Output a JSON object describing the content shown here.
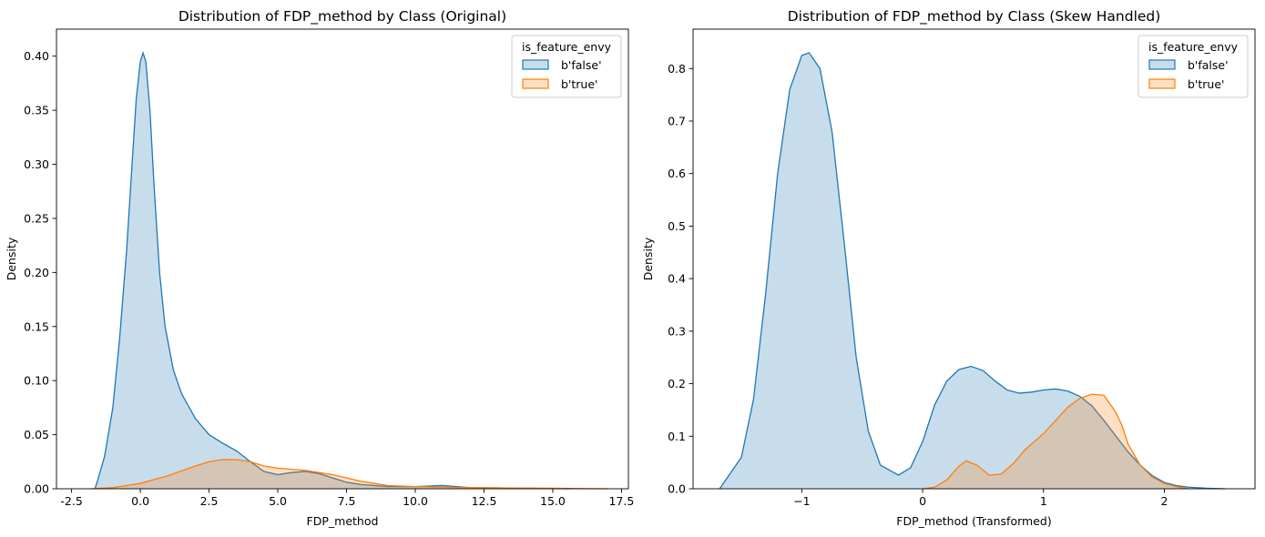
{
  "chart_data": [
    {
      "type": "area",
      "title": "Distribution of FDP_method by Class (Original)",
      "xlabel": "FDP_method",
      "ylabel": "Density",
      "xlim": [
        -3.05,
        17.75
      ],
      "ylim": [
        0,
        0.425
      ],
      "xticks": [
        "-2.5",
        "0.0",
        "2.5",
        "5.0",
        "7.5",
        "10.0",
        "12.5",
        "15.0",
        "17.5"
      ],
      "xtick_values": [
        -2.5,
        0,
        2.5,
        5,
        7.5,
        10,
        12.5,
        15,
        17.5
      ],
      "yticks": [
        "0.00",
        "0.05",
        "0.10",
        "0.15",
        "0.20",
        "0.25",
        "0.30",
        "0.35",
        "0.40"
      ],
      "ytick_values": [
        0,
        0.05,
        0.1,
        0.15,
        0.2,
        0.25,
        0.3,
        0.35,
        0.4
      ],
      "grid": false,
      "legend": {
        "title": "is_feature_envy",
        "position": "top-right"
      },
      "series": [
        {
          "name": "b'false'",
          "color": "#1f77b4",
          "points": [
            [
              -1.65,
              0
            ],
            [
              -1.55,
              0.008
            ],
            [
              -1.3,
              0.03
            ],
            [
              -1.0,
              0.075
            ],
            [
              -0.75,
              0.14
            ],
            [
              -0.5,
              0.22
            ],
            [
              -0.3,
              0.3
            ],
            [
              -0.15,
              0.36
            ],
            [
              0.0,
              0.395
            ],
            [
              0.1,
              0.403
            ],
            [
              0.2,
              0.395
            ],
            [
              0.35,
              0.35
            ],
            [
              0.5,
              0.28
            ],
            [
              0.7,
              0.2
            ],
            [
              0.9,
              0.15
            ],
            [
              1.2,
              0.11
            ],
            [
              1.5,
              0.088
            ],
            [
              2.0,
              0.065
            ],
            [
              2.5,
              0.05
            ],
            [
              3.0,
              0.042
            ],
            [
              3.5,
              0.035
            ],
            [
              4.0,
              0.025
            ],
            [
              4.5,
              0.016
            ],
            [
              5.0,
              0.013
            ],
            [
              5.5,
              0.015
            ],
            [
              6.0,
              0.016
            ],
            [
              6.5,
              0.014
            ],
            [
              7.0,
              0.01
            ],
            [
              7.5,
              0.006
            ],
            [
              8.0,
              0.004
            ],
            [
              9.0,
              0.002
            ],
            [
              10.0,
              0.002
            ],
            [
              11.0,
              0.003
            ],
            [
              12.0,
              0.001
            ],
            [
              13.0,
              0.0008
            ],
            [
              14.0,
              0.0005
            ],
            [
              15.0,
              0.0002
            ],
            [
              15.6,
              0
            ]
          ]
        },
        {
          "name": "b'true'",
          "color": "#ff7f0e",
          "points": [
            [
              -1.8,
              0
            ],
            [
              -1.0,
              0.001
            ],
            [
              0.0,
              0.005
            ],
            [
              1.0,
              0.012
            ],
            [
              2.0,
              0.021
            ],
            [
              2.5,
              0.025
            ],
            [
              3.0,
              0.027
            ],
            [
              3.5,
              0.027
            ],
            [
              4.0,
              0.025
            ],
            [
              4.5,
              0.021
            ],
            [
              5.0,
              0.019
            ],
            [
              5.5,
              0.018
            ],
            [
              6.0,
              0.017
            ],
            [
              7.0,
              0.013
            ],
            [
              8.0,
              0.007
            ],
            [
              9.0,
              0.003
            ],
            [
              10.0,
              0.002
            ],
            [
              11.0,
              0.0015
            ],
            [
              12.0,
              0.001
            ],
            [
              13.0,
              0.0008
            ],
            [
              14.0,
              0.0006
            ],
            [
              15.0,
              0.0005
            ],
            [
              16.0,
              0.0002
            ],
            [
              17.0,
              0
            ]
          ]
        }
      ]
    },
    {
      "type": "area",
      "title": "Distribution of FDP_method by Class (Skew Handled)",
      "xlabel": "FDP_method (Transformed)",
      "ylabel": "Density",
      "xlim": [
        -1.9,
        2.75
      ],
      "ylim": [
        0,
        0.875
      ],
      "xticks": [
        "−1",
        "0",
        "1",
        "2"
      ],
      "xtick_values": [
        -1,
        0,
        1,
        2
      ],
      "yticks": [
        "0.0",
        "0.1",
        "0.2",
        "0.3",
        "0.4",
        "0.5",
        "0.6",
        "0.7",
        "0.8"
      ],
      "ytick_values": [
        0,
        0.1,
        0.2,
        0.3,
        0.4,
        0.5,
        0.6,
        0.7,
        0.8
      ],
      "grid": false,
      "legend": {
        "title": "is_feature_envy",
        "position": "top-right"
      },
      "series": [
        {
          "name": "b'false'",
          "color": "#1f77b4",
          "points": [
            [
              -1.68,
              0
            ],
            [
              -1.65,
              0.01
            ],
            [
              -1.5,
              0.06
            ],
            [
              -1.4,
              0.17
            ],
            [
              -1.3,
              0.37
            ],
            [
              -1.2,
              0.6
            ],
            [
              -1.1,
              0.76
            ],
            [
              -1.0,
              0.825
            ],
            [
              -0.94,
              0.83
            ],
            [
              -0.85,
              0.8
            ],
            [
              -0.75,
              0.68
            ],
            [
              -0.65,
              0.47
            ],
            [
              -0.55,
              0.25
            ],
            [
              -0.45,
              0.11
            ],
            [
              -0.35,
              0.045
            ],
            [
              -0.2,
              0.026
            ],
            [
              -0.1,
              0.04
            ],
            [
              0.0,
              0.09
            ],
            [
              0.1,
              0.16
            ],
            [
              0.2,
              0.205
            ],
            [
              0.3,
              0.227
            ],
            [
              0.4,
              0.233
            ],
            [
              0.5,
              0.225
            ],
            [
              0.6,
              0.205
            ],
            [
              0.7,
              0.188
            ],
            [
              0.8,
              0.182
            ],
            [
              0.9,
              0.184
            ],
            [
              1.0,
              0.188
            ],
            [
              1.1,
              0.19
            ],
            [
              1.2,
              0.186
            ],
            [
              1.3,
              0.176
            ],
            [
              1.4,
              0.158
            ],
            [
              1.5,
              0.13
            ],
            [
              1.6,
              0.1
            ],
            [
              1.7,
              0.07
            ],
            [
              1.8,
              0.045
            ],
            [
              1.9,
              0.025
            ],
            [
              2.0,
              0.012
            ],
            [
              2.1,
              0.006
            ],
            [
              2.2,
              0.003
            ],
            [
              2.35,
              0.001
            ],
            [
              2.5,
              0
            ]
          ]
        },
        {
          "name": "b'true'",
          "color": "#ff7f0e",
          "points": [
            [
              0.0,
              0
            ],
            [
              0.1,
              0.003
            ],
            [
              0.2,
              0.017
            ],
            [
              0.3,
              0.043
            ],
            [
              0.36,
              0.053
            ],
            [
              0.45,
              0.045
            ],
            [
              0.55,
              0.026
            ],
            [
              0.65,
              0.028
            ],
            [
              0.75,
              0.048
            ],
            [
              0.85,
              0.075
            ],
            [
              1.0,
              0.105
            ],
            [
              1.1,
              0.13
            ],
            [
              1.2,
              0.155
            ],
            [
              1.3,
              0.172
            ],
            [
              1.4,
              0.18
            ],
            [
              1.5,
              0.178
            ],
            [
              1.6,
              0.145
            ],
            [
              1.65,
              0.12
            ],
            [
              1.7,
              0.085
            ],
            [
              1.8,
              0.045
            ],
            [
              1.9,
              0.022
            ],
            [
              2.0,
              0.01
            ],
            [
              2.1,
              0.004
            ],
            [
              2.2,
              0
            ]
          ]
        }
      ]
    }
  ]
}
